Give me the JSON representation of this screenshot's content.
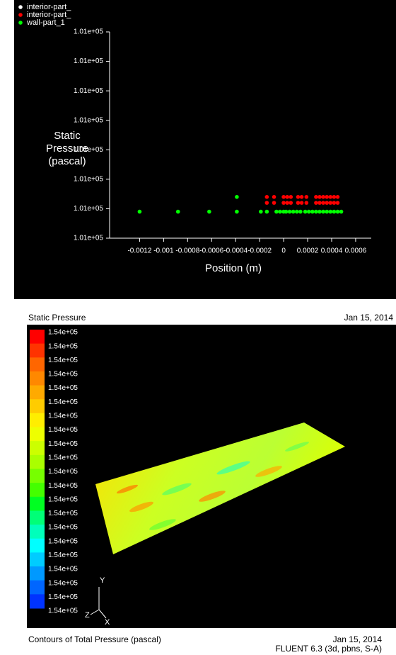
{
  "chart_data": [
    {
      "type": "scatter",
      "xlabel": "Position (m)",
      "ylabel": "Static Pressure (pascal)",
      "xlim": [
        -0.00145,
        0.00073
      ],
      "xticks": [
        -0.0012,
        -0.001,
        -0.0008,
        -0.0006,
        -0.0004,
        -0.0002,
        0,
        0.0002,
        0.0004,
        0.0006
      ],
      "ylim": [
        101320,
        101390
      ],
      "yticks": [
        {
          "value": 101320,
          "label": "1.01e+05"
        },
        {
          "value": 101330,
          "label": "1.01e+05"
        },
        {
          "value": 101340,
          "label": "1.01e+05"
        },
        {
          "value": 101350,
          "label": "1.01e+05"
        },
        {
          "value": 101360,
          "label": "1.01e+05"
        },
        {
          "value": 101370,
          "label": "1.01e+05"
        },
        {
          "value": 101380,
          "label": "1.01e+05"
        },
        {
          "value": 101390,
          "label": "1.01e+05"
        }
      ],
      "legend": "upper left",
      "series": [
        {
          "name": "interior-part_",
          "color": "#ffffff",
          "x": [],
          "values": []
        },
        {
          "name": "interior-part_",
          "color": "#ff0000",
          "x": [
            -0.00014,
            -8e-05,
            0,
            3e-05,
            6e-05,
            0.00012,
            0.00015,
            0.00019,
            0.00027,
            0.0003,
            0.00033,
            0.00036,
            0.00039,
            0.00042,
            0.00045,
            -0.00014,
            -8e-05,
            0,
            3e-05,
            6e-05,
            0.00012,
            0.00015,
            0.00019,
            0.00027,
            0.0003,
            0.00033,
            0.00036,
            0.00039,
            0.00042,
            0.00045
          ],
          "values": [
            101334,
            101334,
            101334,
            101334,
            101334,
            101334,
            101334,
            101334,
            101334,
            101334,
            101334,
            101334,
            101334,
            101334,
            101334,
            101332,
            101332,
            101332,
            101332,
            101332,
            101332,
            101332,
            101332,
            101332,
            101332,
            101332,
            101332,
            101332,
            101332,
            101332
          ]
        },
        {
          "name": "wall-part_1",
          "color": "#00ff00",
          "x": [
            -0.0012,
            -0.00088,
            -0.00062,
            -0.00039,
            -0.00019,
            -0.00014,
            -6e-05,
            -3e-05,
            0,
            2e-05,
            5e-05,
            8e-05,
            0.00011,
            0.00014,
            0.00018,
            0.00021,
            0.00024,
            0.00027,
            0.0003,
            0.00033,
            0.00036,
            0.00039,
            0.00042,
            0.00045,
            0.00048,
            -0.00039
          ],
          "values": [
            101329,
            101329,
            101329,
            101329,
            101329,
            101329,
            101329,
            101329,
            101329,
            101329,
            101329,
            101329,
            101329,
            101329,
            101329,
            101329,
            101329,
            101329,
            101329,
            101329,
            101329,
            101329,
            101329,
            101329,
            101329,
            101334
          ]
        }
      ]
    },
    {
      "type": "contour",
      "header": "Static Pressure",
      "header_date": "Jan 15, 2014",
      "title": "Contours of Total Pressure (pascal)",
      "date": "Jan 15, 2014",
      "solver": "FLUENT 6.3 (3d, pbns, S-A)",
      "colorbar_labels": [
        "1.54e+05",
        "1.54e+05",
        "1.54e+05",
        "1.54e+05",
        "1.54e+05",
        "1.54e+05",
        "1.54e+05",
        "1.54e+05",
        "1.54e+05",
        "1.54e+05",
        "1.54e+05",
        "1.54e+05",
        "1.54e+05",
        "1.54e+05",
        "1.54e+05",
        "1.54e+05",
        "1.54e+05",
        "1.54e+05",
        "1.54e+05",
        "1.54e+05",
        "1.54e+05"
      ],
      "colors": [
        "#ff0000",
        "#ff3300",
        "#ff6600",
        "#ff8800",
        "#ffaa00",
        "#ffcc00",
        "#ffee00",
        "#eeff00",
        "#ccff00",
        "#aaff00",
        "#77ff00",
        "#44ff00",
        "#00ff22",
        "#00ff77",
        "#00ffbb",
        "#00ffff",
        "#00ccff",
        "#0099ff",
        "#0066ff",
        "#0033ff"
      ],
      "axes": [
        "X",
        "Y",
        "Z"
      ]
    }
  ]
}
